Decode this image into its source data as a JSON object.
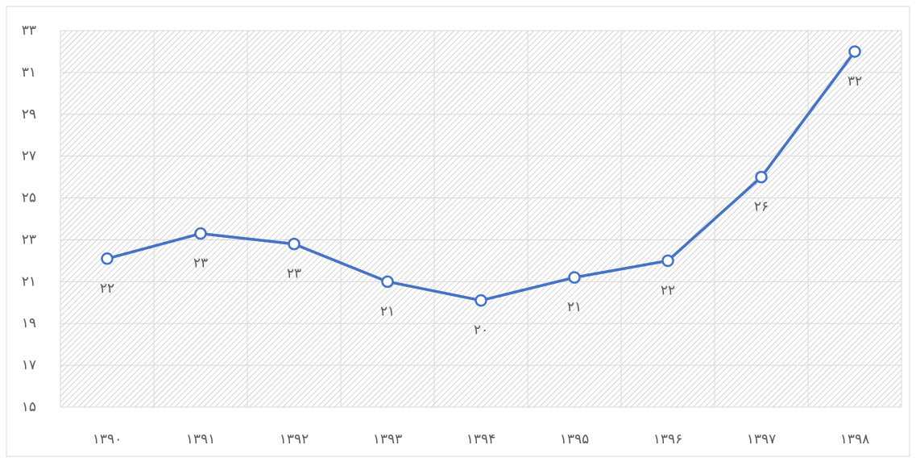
{
  "chart_data": {
    "type": "line",
    "categories": [
      "۱۳۹۰",
      "۱۳۹۱",
      "۱۳۹۲",
      "۱۳۹۳",
      "۱۳۹۴",
      "۱۳۹۵",
      "۱۳۹۶",
      "۱۳۹۷",
      "۱۳۹۸"
    ],
    "values": [
      22.1,
      23.3,
      22.8,
      21.0,
      20.1,
      21.2,
      22.0,
      26.0,
      32.0
    ],
    "value_labels": [
      "۲۲",
      "۲۳",
      "۲۳",
      "۲۱",
      "۲۰",
      "۲۱",
      "۲۲",
      "۲۶",
      "۳۲"
    ],
    "color": "#4472c4",
    "ylim": [
      15,
      33
    ],
    "yticks": [
      {
        "value": 15,
        "label": "۱۵"
      },
      {
        "value": 17,
        "label": "۱۷"
      },
      {
        "value": 19,
        "label": "۱۹"
      },
      {
        "value": 21,
        "label": "۲۱"
      },
      {
        "value": 23,
        "label": "۲۳"
      },
      {
        "value": 25,
        "label": "۲۵"
      },
      {
        "value": 27,
        "label": "۲۷"
      },
      {
        "value": 29,
        "label": "۲۹"
      },
      {
        "value": 31,
        "label": "۳۱"
      },
      {
        "value": 33,
        "label": "۳۳"
      }
    ],
    "grid": true
  }
}
